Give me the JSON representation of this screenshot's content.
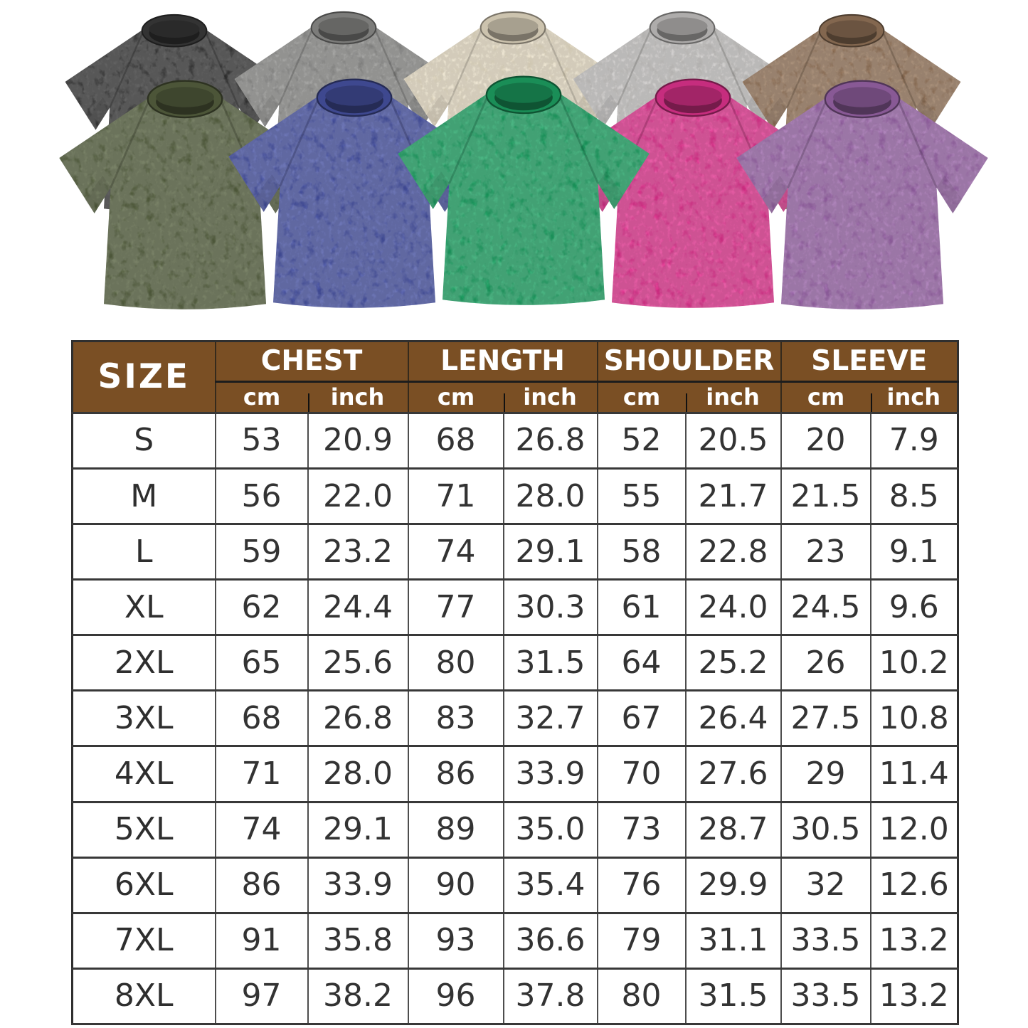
{
  "product_gallery": {
    "description": "acid-washed oversized t-shirts",
    "shirts": [
      {
        "name": "black",
        "color": "#3a3a3a"
      },
      {
        "name": "gray",
        "color": "#8d8d8b"
      },
      {
        "name": "cream",
        "color": "#e8dec6"
      },
      {
        "name": "light-gray",
        "color": "#c6c4c2"
      },
      {
        "name": "brown",
        "color": "#95755a"
      },
      {
        "name": "army-green",
        "color": "#566140"
      },
      {
        "name": "blue",
        "color": "#4752a3"
      },
      {
        "name": "green",
        "color": "#1da163"
      },
      {
        "name": "rose-pink",
        "color": "#e1338f"
      },
      {
        "name": "purple",
        "color": "#9a65a9"
      }
    ]
  },
  "size_chart": {
    "header": {
      "size_label": "SIZE",
      "groups": [
        "CHEST",
        "LENGTH",
        "SHOULDER",
        "SLEEVE"
      ],
      "unit_cm": "cm",
      "unit_inch": "inch"
    },
    "colors": {
      "header_bg": "#7a4f24",
      "header_text": "#ffffff",
      "border": "#3a3a3a",
      "cell_text": "#333333"
    },
    "rows": [
      {
        "size": "S",
        "chest_cm": "53",
        "chest_in": "20.9",
        "length_cm": "68",
        "length_in": "26.8",
        "shoulder_cm": "52",
        "shoulder_in": "20.5",
        "sleeve_cm": "20",
        "sleeve_in": "7.9"
      },
      {
        "size": "M",
        "chest_cm": "56",
        "chest_in": "22.0",
        "length_cm": "71",
        "length_in": "28.0",
        "shoulder_cm": "55",
        "shoulder_in": "21.7",
        "sleeve_cm": "21.5",
        "sleeve_in": "8.5"
      },
      {
        "size": "L",
        "chest_cm": "59",
        "chest_in": "23.2",
        "length_cm": "74",
        "length_in": "29.1",
        "shoulder_cm": "58",
        "shoulder_in": "22.8",
        "sleeve_cm": "23",
        "sleeve_in": "9.1"
      },
      {
        "size": "XL",
        "chest_cm": "62",
        "chest_in": "24.4",
        "length_cm": "77",
        "length_in": "30.3",
        "shoulder_cm": "61",
        "shoulder_in": "24.0",
        "sleeve_cm": "24.5",
        "sleeve_in": "9.6"
      },
      {
        "size": "2XL",
        "chest_cm": "65",
        "chest_in": "25.6",
        "length_cm": "80",
        "length_in": "31.5",
        "shoulder_cm": "64",
        "shoulder_in": "25.2",
        "sleeve_cm": "26",
        "sleeve_in": "10.2"
      },
      {
        "size": "3XL",
        "chest_cm": "68",
        "chest_in": "26.8",
        "length_cm": "83",
        "length_in": "32.7",
        "shoulder_cm": "67",
        "shoulder_in": "26.4",
        "sleeve_cm": "27.5",
        "sleeve_in": "10.8"
      },
      {
        "size": "4XL",
        "chest_cm": "71",
        "chest_in": "28.0",
        "length_cm": "86",
        "length_in": "33.9",
        "shoulder_cm": "70",
        "shoulder_in": "27.6",
        "sleeve_cm": "29",
        "sleeve_in": "11.4"
      },
      {
        "size": "5XL",
        "chest_cm": "74",
        "chest_in": "29.1",
        "length_cm": "89",
        "length_in": "35.0",
        "shoulder_cm": "73",
        "shoulder_in": "28.7",
        "sleeve_cm": "30.5",
        "sleeve_in": "12.0"
      },
      {
        "size": "6XL",
        "chest_cm": "86",
        "chest_in": "33.9",
        "length_cm": "90",
        "length_in": "35.4",
        "shoulder_cm": "76",
        "shoulder_in": "29.9",
        "sleeve_cm": "32",
        "sleeve_in": "12.6"
      },
      {
        "size": "7XL",
        "chest_cm": "91",
        "chest_in": "35.8",
        "length_cm": "93",
        "length_in": "36.6",
        "shoulder_cm": "79",
        "shoulder_in": "31.1",
        "sleeve_cm": "33.5",
        "sleeve_in": "13.2"
      },
      {
        "size": "8XL",
        "chest_cm": "97",
        "chest_in": "38.2",
        "length_cm": "96",
        "length_in": "37.8",
        "shoulder_cm": "80",
        "shoulder_in": "31.5",
        "sleeve_cm": "33.5",
        "sleeve_in": "13.2"
      }
    ]
  },
  "chart_data": {
    "type": "table",
    "title": "T-shirt size chart",
    "columns": [
      "SIZE",
      "CHEST cm",
      "CHEST inch",
      "LENGTH cm",
      "LENGTH inch",
      "SHOULDER cm",
      "SHOULDER inch",
      "SLEEVE cm",
      "SLEEVE inch"
    ],
    "rows": [
      [
        "S",
        53,
        20.9,
        68,
        26.8,
        52,
        20.5,
        20,
        7.9
      ],
      [
        "M",
        56,
        22.0,
        71,
        28.0,
        55,
        21.7,
        21.5,
        8.5
      ],
      [
        "L",
        59,
        23.2,
        74,
        29.1,
        58,
        22.8,
        23,
        9.1
      ],
      [
        "XL",
        62,
        24.4,
        77,
        30.3,
        61,
        24.0,
        24.5,
        9.6
      ],
      [
        "2XL",
        65,
        25.6,
        80,
        31.5,
        64,
        25.2,
        26,
        10.2
      ],
      [
        "3XL",
        68,
        26.8,
        83,
        32.7,
        67,
        26.4,
        27.5,
        10.8
      ],
      [
        "4XL",
        71,
        28.0,
        86,
        33.9,
        70,
        27.6,
        29,
        11.4
      ],
      [
        "5XL",
        74,
        29.1,
        89,
        35.0,
        73,
        28.7,
        30.5,
        12.0
      ],
      [
        "6XL",
        86,
        33.9,
        90,
        35.4,
        76,
        29.9,
        32,
        12.6
      ],
      [
        "7XL",
        91,
        35.8,
        93,
        36.6,
        79,
        31.1,
        33.5,
        13.2
      ],
      [
        "8XL",
        97,
        38.2,
        96,
        37.8,
        80,
        31.5,
        33.5,
        13.2
      ]
    ]
  }
}
